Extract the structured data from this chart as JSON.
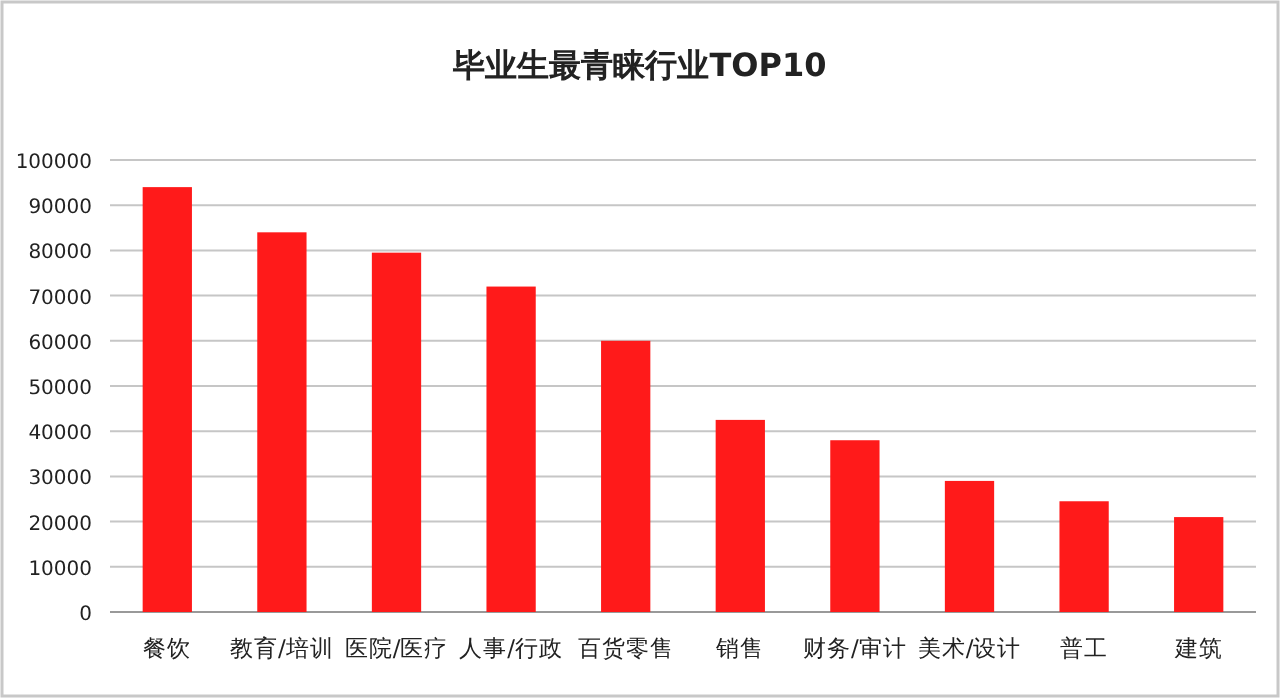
{
  "chart_data": {
    "type": "bar",
    "title": "毕业生最青睐行业TOP10",
    "categories": [
      "餐饮",
      "教育/培训",
      "医院/医疗",
      "人事/行政",
      "百货零售",
      "销售",
      "财务/审计",
      "美术/设计",
      "普工",
      "建筑"
    ],
    "values": [
      94000,
      84000,
      79500,
      72000,
      60000,
      42500,
      38000,
      29000,
      24500,
      21000
    ],
    "color": "#ff1a1a",
    "ylim": [
      0,
      100000
    ],
    "yticks": [
      0,
      10000,
      20000,
      30000,
      40000,
      50000,
      60000,
      70000,
      80000,
      90000,
      100000
    ],
    "grid": "y"
  }
}
